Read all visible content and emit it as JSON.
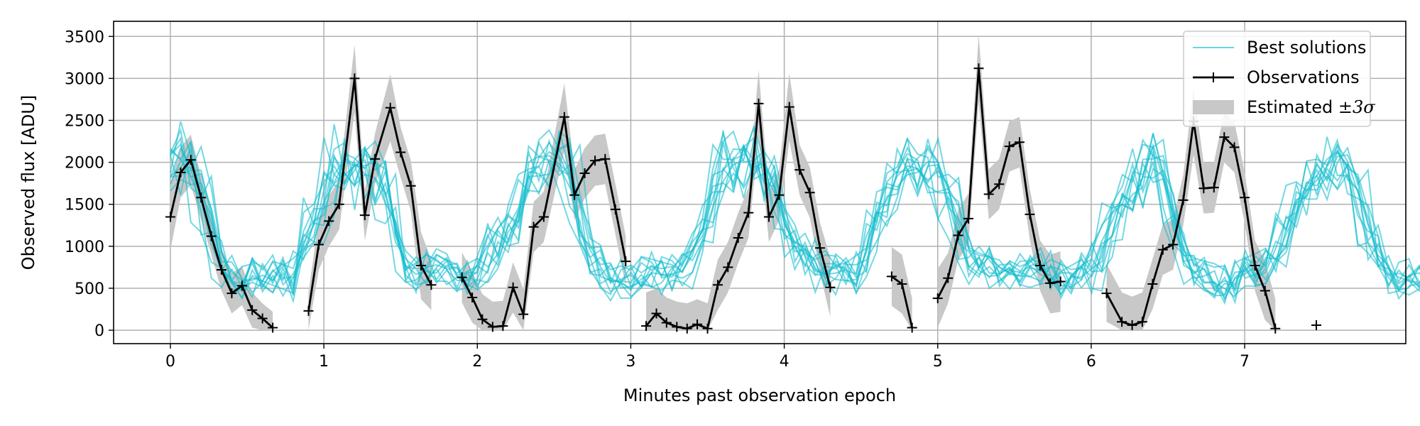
{
  "chart_data": {
    "type": "line",
    "xlabel": "Minutes past observation epoch",
    "ylabel": "Observed flux [ADU]",
    "xlim": [
      -0.37,
      8.05
    ],
    "ylim": [
      -160,
      3680
    ],
    "xticks": [
      0,
      1,
      2,
      3,
      4,
      5,
      6,
      7
    ],
    "yticks": [
      0,
      500,
      1000,
      1500,
      2000,
      2500,
      3000,
      3500
    ],
    "grid": true,
    "legend_position": "top-right",
    "legend": {
      "best": "Best solutions",
      "obs": "Observations",
      "band_prefix": "Estimated ",
      "band_suffix": "±3σ"
    },
    "colors": {
      "best": "#17becf",
      "obs": "#000000",
      "band": "#c8c8c8",
      "grid": "#b0b0b0"
    },
    "cadence_minutes": 0.0667,
    "observations": {
      "name": "Observations",
      "segments": [
        [
          [
            0.0,
            1350
          ],
          [
            0.067,
            1880
          ],
          [
            0.133,
            2030
          ],
          [
            0.2,
            1580
          ],
          [
            0.267,
            1120
          ],
          [
            0.333,
            720
          ],
          [
            0.4,
            440
          ],
          [
            0.467,
            530
          ],
          [
            0.533,
            240
          ],
          [
            0.6,
            140
          ],
          [
            0.667,
            30
          ]
        ],
        [
          [
            0.9,
            230
          ],
          [
            0.967,
            1020
          ],
          [
            1.033,
            1300
          ],
          [
            1.1,
            1500
          ],
          [
            1.2,
            3000
          ],
          [
            1.267,
            1370
          ],
          [
            1.333,
            2040
          ],
          [
            1.433,
            2650
          ],
          [
            1.5,
            2120
          ],
          [
            1.567,
            1720
          ],
          [
            1.633,
            770
          ],
          [
            1.7,
            540
          ]
        ],
        [
          [
            1.9,
            630
          ],
          [
            1.967,
            390
          ],
          [
            2.033,
            130
          ],
          [
            2.1,
            40
          ],
          [
            2.167,
            50
          ],
          [
            2.233,
            510
          ],
          [
            2.3,
            190
          ],
          [
            2.367,
            1230
          ],
          [
            2.433,
            1350
          ],
          [
            2.567,
            2540
          ],
          [
            2.633,
            1610
          ],
          [
            2.7,
            1870
          ],
          [
            2.767,
            2020
          ],
          [
            2.833,
            2040
          ],
          [
            2.9,
            1440
          ],
          [
            2.967,
            820
          ]
        ],
        [
          [
            3.1,
            50
          ],
          [
            3.167,
            200
          ],
          [
            3.233,
            90
          ],
          [
            3.3,
            40
          ],
          [
            3.367,
            20
          ],
          [
            3.433,
            70
          ],
          [
            3.5,
            20
          ],
          [
            3.567,
            540
          ],
          [
            3.633,
            750
          ],
          [
            3.7,
            1100
          ],
          [
            3.767,
            1400
          ],
          [
            3.833,
            2700
          ],
          [
            3.9,
            1350
          ],
          [
            3.967,
            1610
          ],
          [
            4.033,
            2660
          ],
          [
            4.1,
            1910
          ],
          [
            4.167,
            1640
          ],
          [
            4.233,
            980
          ],
          [
            4.3,
            510
          ]
        ],
        [
          [
            4.7,
            640
          ],
          [
            4.767,
            550
          ],
          [
            4.833,
            30
          ]
        ],
        [
          [
            5.0,
            380
          ],
          [
            5.067,
            620
          ],
          [
            5.133,
            1130
          ],
          [
            5.2,
            1330
          ],
          [
            5.267,
            3120
          ],
          [
            5.333,
            1620
          ],
          [
            5.4,
            1740
          ],
          [
            5.467,
            2190
          ],
          [
            5.533,
            2240
          ],
          [
            5.6,
            1380
          ],
          [
            5.667,
            770
          ],
          [
            5.733,
            560
          ],
          [
            5.8,
            580
          ]
        ],
        [
          [
            6.1,
            440
          ],
          [
            6.2,
            100
          ],
          [
            6.267,
            60
          ],
          [
            6.333,
            100
          ],
          [
            6.4,
            550
          ],
          [
            6.467,
            960
          ],
          [
            6.533,
            1020
          ],
          [
            6.6,
            1550
          ],
          [
            6.667,
            2490
          ],
          [
            6.733,
            1690
          ],
          [
            6.8,
            1700
          ],
          [
            6.867,
            2300
          ],
          [
            6.933,
            2180
          ],
          [
            7.0,
            1580
          ],
          [
            7.067,
            770
          ],
          [
            7.133,
            470
          ],
          [
            7.2,
            20
          ]
        ],
        [
          [
            7.467,
            60
          ]
        ]
      ]
    },
    "band": {
      "name": "Estimated ±3σ",
      "segments": [
        [
          [
            0.0,
            950,
            1750
          ],
          [
            0.067,
            1580,
            2180
          ],
          [
            0.133,
            1730,
            2330
          ],
          [
            0.2,
            1320,
            1840
          ],
          [
            0.267,
            900,
            1340
          ],
          [
            0.333,
            470,
            970
          ],
          [
            0.4,
            200,
            680
          ],
          [
            0.467,
            300,
            760
          ],
          [
            0.533,
            30,
            450
          ],
          [
            0.6,
            0,
            320
          ],
          [
            0.667,
            0,
            220
          ]
        ],
        [
          [
            0.9,
            0,
            450
          ],
          [
            0.967,
            720,
            1320
          ],
          [
            1.033,
            1000,
            1600
          ],
          [
            1.1,
            1200,
            1800
          ],
          [
            1.2,
            2600,
            3400
          ],
          [
            1.267,
            1070,
            1670
          ],
          [
            1.333,
            1740,
            2340
          ],
          [
            1.433,
            2250,
            3050
          ],
          [
            1.5,
            1820,
            2420
          ],
          [
            1.567,
            1420,
            2020
          ],
          [
            1.633,
            370,
            1170
          ],
          [
            1.7,
            240,
            840
          ]
        ],
        [
          [
            1.9,
            330,
            930
          ],
          [
            1.967,
            90,
            690
          ],
          [
            2.033,
            0,
            430
          ],
          [
            2.1,
            0,
            340
          ],
          [
            2.167,
            0,
            350
          ],
          [
            2.233,
            210,
            810
          ],
          [
            2.3,
            0,
            490
          ],
          [
            2.367,
            930,
            1530
          ],
          [
            2.433,
            1050,
            1650
          ],
          [
            2.567,
            2140,
            2940
          ],
          [
            2.633,
            1310,
            1910
          ],
          [
            2.7,
            1570,
            2170
          ],
          [
            2.767,
            1720,
            2320
          ],
          [
            2.833,
            1740,
            2340
          ],
          [
            2.9,
            1140,
            1740
          ],
          [
            2.967,
            520,
            1120
          ]
        ],
        [
          [
            3.1,
            0,
            450
          ],
          [
            3.167,
            0,
            500
          ],
          [
            3.233,
            0,
            390
          ],
          [
            3.3,
            0,
            340
          ],
          [
            3.367,
            0,
            320
          ],
          [
            3.433,
            0,
            370
          ],
          [
            3.5,
            0,
            320
          ],
          [
            3.567,
            240,
            840
          ],
          [
            3.633,
            450,
            1050
          ],
          [
            3.7,
            800,
            1400
          ],
          [
            3.767,
            1100,
            1700
          ],
          [
            3.833,
            2300,
            3100
          ],
          [
            3.9,
            1050,
            1650
          ],
          [
            3.967,
            1310,
            1910
          ],
          [
            4.033,
            2260,
            3060
          ],
          [
            4.1,
            1610,
            2210
          ],
          [
            4.167,
            1340,
            1940
          ],
          [
            4.233,
            680,
            1280
          ],
          [
            4.3,
            160,
            860
          ]
        ],
        [
          [
            4.7,
            290,
            990
          ],
          [
            4.767,
            200,
            900
          ],
          [
            4.833,
            0,
            380
          ]
        ],
        [
          [
            5.0,
            30,
            730
          ],
          [
            5.067,
            320,
            920
          ],
          [
            5.133,
            830,
            1430
          ],
          [
            5.2,
            1030,
            1630
          ],
          [
            5.267,
            2720,
            3520
          ],
          [
            5.333,
            1320,
            1920
          ],
          [
            5.4,
            1440,
            2040
          ],
          [
            5.467,
            1890,
            2490
          ],
          [
            5.533,
            1940,
            2540
          ],
          [
            5.6,
            1080,
            1680
          ],
          [
            5.667,
            470,
            1070
          ],
          [
            5.733,
            200,
            900
          ],
          [
            5.8,
            220,
            940
          ]
        ],
        [
          [
            6.1,
            100,
            790
          ],
          [
            6.2,
            0,
            450
          ],
          [
            6.267,
            0,
            400
          ],
          [
            6.333,
            0,
            450
          ],
          [
            6.4,
            250,
            850
          ],
          [
            6.467,
            660,
            1260
          ],
          [
            6.533,
            720,
            1320
          ],
          [
            6.6,
            1250,
            1850
          ],
          [
            6.667,
            2090,
            2890
          ],
          [
            6.733,
            1390,
            1990
          ],
          [
            6.8,
            1400,
            2000
          ],
          [
            6.867,
            2000,
            2600
          ],
          [
            6.933,
            1880,
            2480
          ],
          [
            7.0,
            1280,
            1880
          ],
          [
            7.067,
            470,
            1070
          ],
          [
            7.133,
            120,
            820
          ],
          [
            7.2,
            0,
            370
          ]
        ]
      ]
    },
    "best_solutions": {
      "name": "Best solutions",
      "x_start": 0.0,
      "x_step": 0.0667,
      "count": 12,
      "template": [
        1900,
        2050,
        2000,
        1700,
        1250,
        850,
        650,
        600,
        600,
        650,
        700,
        650,
        600,
        950,
        1300,
        1600,
        2000,
        1950,
        1850,
        1950,
        1900,
        1650,
        1200,
        750,
        620,
        700,
        800,
        750,
        700,
        600,
        700,
        800,
        1000,
        1100,
        1300,
        1800,
        1900,
        1950,
        2100,
        1950,
        1400,
        950,
        750,
        650,
        600,
        600,
        650,
        700,
        700,
        650,
        700,
        900,
        1200,
        1550,
        2000,
        1900,
        2000,
        2100,
        1850,
        1700,
        1300,
        950,
        850,
        720,
        700,
        780,
        750,
        650,
        850,
        1300,
        1600,
        1750,
        2000,
        1900,
        1850,
        1950,
        1650,
        1250,
        900,
        800,
        750,
        700,
        650,
        700,
        750,
        650,
        700,
        600,
        650,
        750,
        680,
        900,
        1250,
        1600,
        1650,
        1900,
        2150,
        2000,
        1350,
        900,
        720,
        650,
        600,
        550,
        550,
        650,
        700,
        720,
        800,
        1200,
        1400,
        1650,
        1750,
        1900,
        1950,
        1900,
        1700,
        1250,
        900,
        680,
        600,
        620,
        650,
        600
      ]
    }
  }
}
